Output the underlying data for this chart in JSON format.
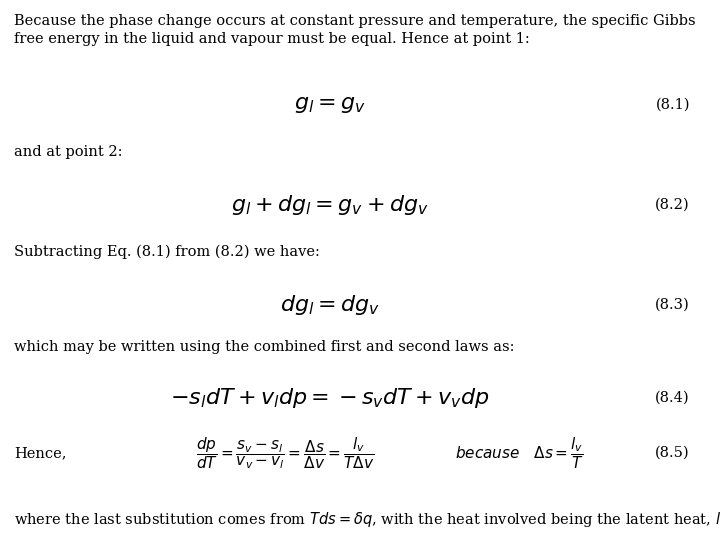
{
  "bg_color": "#ffffff",
  "text_color": "#000000",
  "intro_line1": "Because the phase change occurs at constant pressure and temperature, the specific Gibbs",
  "intro_line2": "free energy in the liquid and vapour must be equal. Hence at point 1:",
  "eq1_latex": "$g_l = g_v$",
  "eq1_num": "(8.1)",
  "text2": "and at point 2:",
  "eq2_latex": "$g_l + dg_l = g_v + dg_v$",
  "eq2_num": "(8.2)",
  "text3": "Subtracting Eq. (8.1) from (8.2) we have:",
  "eq3_latex": "$dg_l = dg_v$",
  "eq3_num": "(8.3)",
  "text4": "which may be written using the combined first and second laws as:",
  "eq4_latex": "$-s_l dT + v_l dp = -s_v dT + v_v dp$",
  "eq4_num": "(8.4)",
  "text5": "Hence,",
  "eq5_frac": "$\\dfrac{dp}{dT} = \\dfrac{s_v - s_l}{v_v - v_l} = \\dfrac{\\Delta s}{\\Delta v} = \\dfrac{l_v}{T\\Delta v}$",
  "eq5_because": "$because \\quad \\Delta s = \\dfrac{l_v}{T}$",
  "eq5_num": "(8.5)",
  "text6_plain": "where the last substitution comes from ",
  "text6_italic": "Tds",
  "text6_eq": "=",
  "text6_delta": "$\\delta q$",
  "text6_rest": ", with the heat involved being the latent heat, ",
  "text6_lv": "$l_v$",
  "text6_end": " .",
  "text6_full": "where the last substitution comes from $Tds=\\delta q$, with the heat involved being the latent heat, $l_v$ .",
  "fig_width": 7.2,
  "fig_height": 5.4,
  "dpi": 100
}
